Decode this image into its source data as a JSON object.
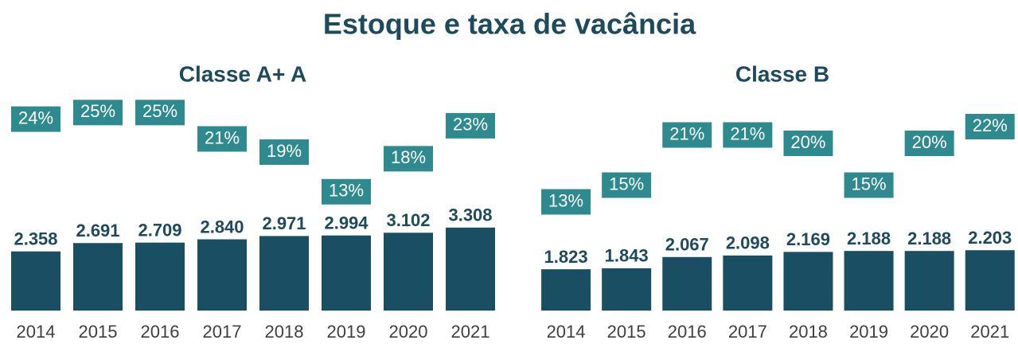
{
  "title": "Estoque e taxa de vacância",
  "chart_data": [
    {
      "type": "bar",
      "title": "Classe A+ A",
      "categories": [
        "2014",
        "2015",
        "2016",
        "2017",
        "2018",
        "2019",
        "2020",
        "2021"
      ],
      "ylim": [
        0,
        10000
      ],
      "y2lim": [
        -5,
        33
      ],
      "series": [
        {
          "color": "#1a4f63",
          "values": [
            2358,
            2691,
            2709,
            2840,
            2971,
            2994,
            3102,
            3308
          ],
          "value_labels": [
            "2.358",
            "2.691",
            "2.709",
            "2.840",
            "2.971",
            "2.994",
            "3.102",
            "3.308"
          ]
        },
        {
          "color": "#2e8a8f",
          "axis": "y2",
          "values": [
            24,
            25,
            25,
            21,
            19,
            13,
            18,
            23
          ],
          "value_labels": [
            "24%",
            "25%",
            "25%",
            "21%",
            "19%",
            "13%",
            "18%",
            "23%"
          ]
        }
      ]
    },
    {
      "type": "bar",
      "title": "Classe B",
      "categories": [
        "2014",
        "2015",
        "2016",
        "2017",
        "2018",
        "2019",
        "2020",
        "2021"
      ],
      "ylim": [
        1000,
        6000
      ],
      "y2lim": [
        0,
        30
      ],
      "series": [
        {
          "color": "#1a4f63",
          "values": [
            1823,
            1843,
            2067,
            2098,
            2169,
            2188,
            2188,
            2203
          ],
          "value_labels": [
            "1.823",
            "1.843",
            "2.067",
            "2.098",
            "2.169",
            "2.188",
            "2.188",
            "2.203"
          ]
        },
        {
          "color": "#2e8a8f",
          "axis": "y2",
          "values": [
            13,
            15,
            21,
            21,
            20,
            15,
            20,
            22
          ],
          "value_labels": [
            "13%",
            "15%",
            "21%",
            "21%",
            "20%",
            "15%",
            "20%",
            "22%"
          ]
        }
      ]
    }
  ]
}
